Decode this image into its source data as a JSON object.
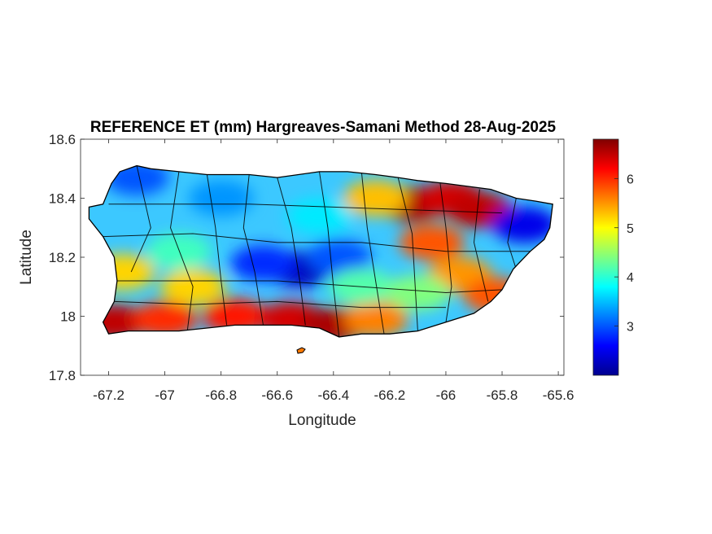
{
  "chart_data": {
    "type": "heatmap",
    "title": "REFERENCE ET (mm) Hargreaves-Samani Method  28-Aug-2025",
    "xlabel": "Longitude",
    "ylabel": "Latitude",
    "xlim": [
      -67.3,
      -65.58
    ],
    "ylim": [
      17.8,
      18.6
    ],
    "xticks": [
      -67.2,
      -67,
      -66.8,
      -66.6,
      -66.4,
      -66.2,
      -66,
      -65.8,
      -65.6
    ],
    "xtick_labels": [
      "-67.2",
      "-67",
      "-66.8",
      "-66.6",
      "-66.4",
      "-66.2",
      "-66",
      "-65.8",
      "-65.6"
    ],
    "yticks": [
      18.6,
      18.4,
      18.2,
      18,
      17.8
    ],
    "ytick_labels": [
      "18.6",
      "18.4",
      "18.2",
      "18",
      "17.8"
    ],
    "colorbar": {
      "colormap": "jet",
      "range": [
        2.0,
        6.8
      ],
      "ticks": [
        3,
        4,
        5,
        6
      ],
      "tick_labels": [
        "3",
        "4",
        "5",
        "6"
      ]
    },
    "grid": false,
    "outline_polygon": [
      [
        -67.27,
        18.37
      ],
      [
        -67.22,
        18.38
      ],
      [
        -67.19,
        18.45
      ],
      [
        -67.16,
        18.49
      ],
      [
        -67.1,
        18.51
      ],
      [
        -67.05,
        18.5
      ],
      [
        -66.95,
        18.49
      ],
      [
        -66.85,
        18.48
      ],
      [
        -66.7,
        18.48
      ],
      [
        -66.6,
        18.47
      ],
      [
        -66.45,
        18.49
      ],
      [
        -66.35,
        18.49
      ],
      [
        -66.25,
        18.48
      ],
      [
        -66.17,
        18.47
      ],
      [
        -66.1,
        18.46
      ],
      [
        -66.0,
        18.45
      ],
      [
        -65.92,
        18.44
      ],
      [
        -65.84,
        18.43
      ],
      [
        -65.75,
        18.4
      ],
      [
        -65.68,
        18.39
      ],
      [
        -65.62,
        18.38
      ],
      [
        -65.63,
        18.3
      ],
      [
        -65.65,
        18.26
      ],
      [
        -65.7,
        18.22
      ],
      [
        -65.76,
        18.16
      ],
      [
        -65.8,
        18.09
      ],
      [
        -65.84,
        18.05
      ],
      [
        -65.9,
        18.01
      ],
      [
        -66.0,
        17.98
      ],
      [
        -66.1,
        17.95
      ],
      [
        -66.2,
        17.94
      ],
      [
        -66.3,
        17.94
      ],
      [
        -66.38,
        17.93
      ],
      [
        -66.45,
        17.96
      ],
      [
        -66.55,
        17.97
      ],
      [
        -66.65,
        17.97
      ],
      [
        -66.75,
        17.97
      ],
      [
        -66.85,
        17.96
      ],
      [
        -66.95,
        17.95
      ],
      [
        -67.05,
        17.95
      ],
      [
        -67.13,
        17.95
      ],
      [
        -67.2,
        17.94
      ],
      [
        -67.22,
        17.98
      ],
      [
        -67.18,
        18.05
      ],
      [
        -67.17,
        18.12
      ],
      [
        -67.18,
        18.2
      ],
      [
        -67.22,
        18.27
      ],
      [
        -67.27,
        18.33
      ]
    ],
    "value_hotspots": [
      {
        "lon": -67.18,
        "lat": 17.98,
        "value": 6.5
      },
      {
        "lon": -67.0,
        "lat": 17.99,
        "value": 6.0
      },
      {
        "lon": -66.75,
        "lat": 18.0,
        "value": 6.1
      },
      {
        "lon": -66.55,
        "lat": 17.99,
        "value": 6.4
      },
      {
        "lon": -66.4,
        "lat": 17.97,
        "value": 6.6
      },
      {
        "lon": -66.25,
        "lat": 17.99,
        "value": 5.6
      },
      {
        "lon": -66.12,
        "lat": 18.38,
        "value": 6.6
      },
      {
        "lon": -65.98,
        "lat": 18.4,
        "value": 6.4
      },
      {
        "lon": -65.88,
        "lat": 18.36,
        "value": 6.5
      },
      {
        "lon": -66.05,
        "lat": 18.25,
        "value": 5.8
      },
      {
        "lon": -65.95,
        "lat": 18.14,
        "value": 5.5
      },
      {
        "lon": -65.82,
        "lat": 18.07,
        "value": 5.8
      },
      {
        "lon": -66.52,
        "lat": 18.16,
        "value": 2.3
      },
      {
        "lon": -66.65,
        "lat": 18.18,
        "value": 2.8
      },
      {
        "lon": -66.38,
        "lat": 18.2,
        "value": 3.0
      },
      {
        "lon": -65.72,
        "lat": 18.31,
        "value": 2.5
      },
      {
        "lon": -67.1,
        "lat": 18.47,
        "value": 3.0
      },
      {
        "lon": -66.8,
        "lat": 18.4,
        "value": 3.3
      },
      {
        "lon": -66.45,
        "lat": 18.34,
        "value": 3.7
      },
      {
        "lon": -66.95,
        "lat": 18.22,
        "value": 4.1
      },
      {
        "lon": -67.15,
        "lat": 18.15,
        "value": 5.2
      },
      {
        "lon": -66.9,
        "lat": 18.1,
        "value": 5.2
      },
      {
        "lon": -66.25,
        "lat": 18.4,
        "value": 5.3
      },
      {
        "lon": -66.3,
        "lat": 18.1,
        "value": 4.2
      },
      {
        "lon": -66.1,
        "lat": 18.08,
        "value": 4.4
      }
    ]
  }
}
